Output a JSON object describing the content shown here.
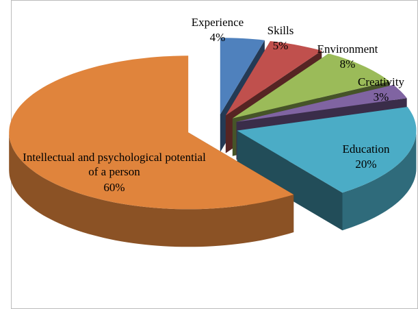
{
  "chart_data": {
    "type": "pie",
    "three_d": true,
    "exploded": true,
    "categories": [
      "Experience",
      "Skills",
      "Environment",
      "Creativity",
      "Education",
      "Intellectual and psychological potential of a person"
    ],
    "values": [
      4,
      5,
      8,
      3,
      20,
      60
    ],
    "value_labels": [
      "4%",
      "5%",
      "8%",
      "3%",
      "20%",
      "60%"
    ],
    "colors": [
      "#4f81bd",
      "#c0504d",
      "#9bbb59",
      "#8064a2",
      "#4bacc6",
      "#e0843c"
    ]
  }
}
